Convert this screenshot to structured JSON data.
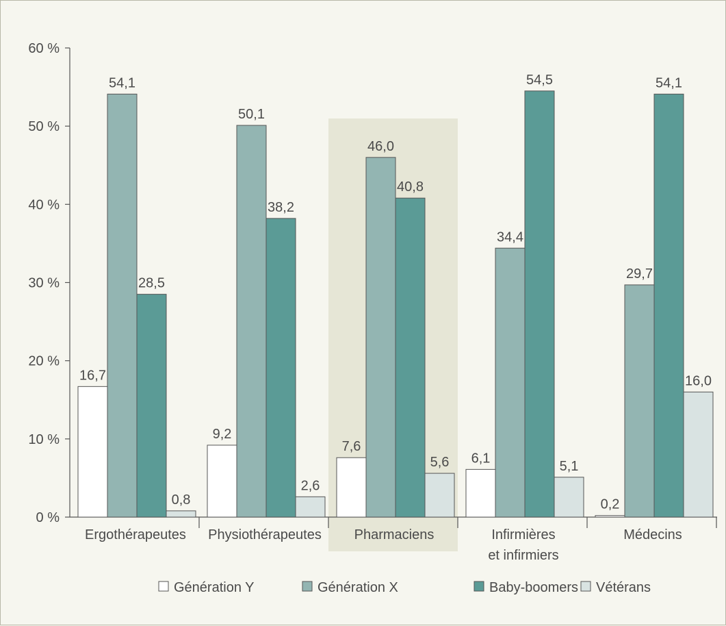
{
  "chart_data": {
    "type": "bar",
    "categories": [
      [
        "Ergothérapeutes"
      ],
      [
        "Physiothérapeutes"
      ],
      [
        "Pharmaciens"
      ],
      [
        "Infirmières",
        "et infirmiers"
      ],
      [
        "Médecins"
      ]
    ],
    "highlighted_category_index": 2,
    "highlight_color": "#e6e6d6",
    "series": [
      {
        "name": "Génération Y",
        "color": "#ffffff",
        "values": [
          16.7,
          9.2,
          7.6,
          6.1,
          0.2
        ]
      },
      {
        "name": "Génération X",
        "color": "#93b5b2",
        "values": [
          54.1,
          50.1,
          46.0,
          34.4,
          29.7
        ]
      },
      {
        "name": "Baby-boomers",
        "color": "#5b9b96",
        "values": [
          28.5,
          38.2,
          40.8,
          54.5,
          54.1
        ]
      },
      {
        "name": "Vétérans",
        "color": "#d9e3e2",
        "values": [
          0.8,
          2.6,
          5.6,
          5.1,
          16.0
        ]
      }
    ],
    "value_labels": [
      [
        "16,7",
        "9,2",
        "7,6",
        "6,1",
        "0,2"
      ],
      [
        "54,1",
        "50,1",
        "46,0",
        "34,4",
        "29,7"
      ],
      [
        "28,5",
        "38,2",
        "40,8",
        "54,5",
        "54,1"
      ],
      [
        "0,8",
        "2,6",
        "5,6",
        "5,1",
        "16,0"
      ]
    ],
    "y_ticks": [
      0,
      10,
      20,
      30,
      40,
      50,
      60
    ],
    "y_tick_labels": [
      "0 %",
      "10 %",
      "20 %",
      "30 %",
      "40 %",
      "50 %",
      "60 %"
    ],
    "ylim": [
      0,
      60
    ],
    "grid": false,
    "legend_position": "bottom",
    "title": "",
    "xlabel": "",
    "ylabel": ""
  }
}
